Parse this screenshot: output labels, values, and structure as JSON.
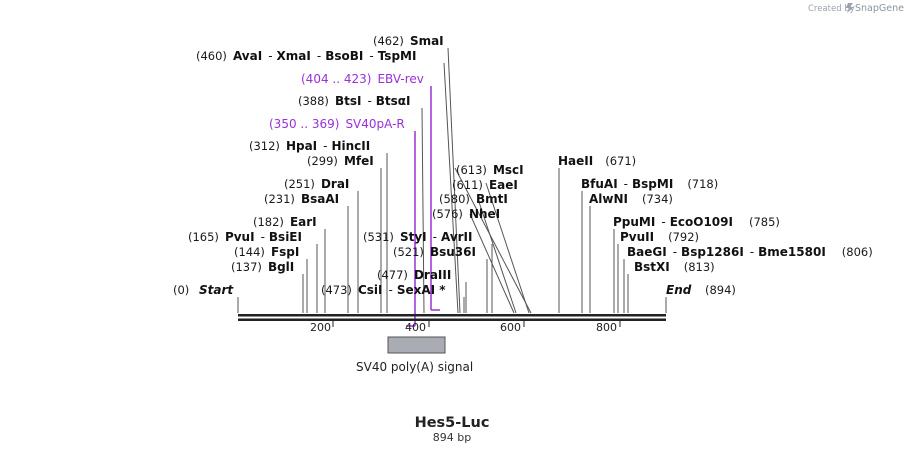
{
  "header": {
    "credit_text": "Created by",
    "brand_name": "SnapGene"
  },
  "map": {
    "title": "Hes5-Luc",
    "length_label": "894 bp",
    "total_bp": 894,
    "start_label": "Start",
    "start_pos": "(0)",
    "end_label": "End",
    "end_pos": "(894)",
    "ticks": [
      "200",
      "400",
      "600",
      "800"
    ]
  },
  "enzyme_rows": [
    {
      "left_pos": "(462)",
      "names": [
        "SmaI"
      ],
      "sites": [
        462
      ]
    },
    {
      "left_pos": "(460)",
      "names": [
        "AvaI",
        "XmaI",
        "BsoBI",
        "TspMI"
      ],
      "sites": [
        460
      ]
    },
    {
      "left_pos": "(388)",
      "names": [
        "BtsI",
        "BtsαI"
      ],
      "sites": [
        388
      ]
    },
    {
      "left_pos": "(312)",
      "names": [
        "HpaI",
        "HincII"
      ],
      "sites": [
        312
      ]
    },
    {
      "left_pos": "(299)",
      "names": [
        "MfeI"
      ],
      "sites": [
        299
      ]
    },
    {
      "left_pos": "(251)",
      "names": [
        "DraI"
      ],
      "sites": [
        251
      ]
    },
    {
      "left_pos": "(231)",
      "names": [
        "BsaAI"
      ],
      "sites": [
        231
      ]
    },
    {
      "left_pos": "(182)",
      "names": [
        "EarI"
      ],
      "sites": [
        182
      ]
    },
    {
      "left_pos": "(165)",
      "names": [
        "PvuI",
        "BsiEI"
      ],
      "sites": [
        165
      ]
    },
    {
      "left_pos": "(144)",
      "names": [
        "FspI"
      ],
      "sites": [
        144
      ]
    },
    {
      "left_pos": "(137)",
      "names": [
        "BglI"
      ],
      "sites": [
        137
      ]
    },
    {
      "left_pos": "(531)",
      "names": [
        "StyI",
        "AvrII"
      ],
      "sites": [
        531
      ]
    },
    {
      "left_pos": "(521)",
      "names": [
        "Bsu36I"
      ],
      "sites": [
        521
      ]
    },
    {
      "left_pos": "(477)",
      "names": [
        "DraIII"
      ],
      "sites": [
        477
      ]
    },
    {
      "left_pos": "(473)",
      "names": [
        "CsiI",
        "SexAI *"
      ],
      "sites": [
        473
      ]
    },
    {
      "left_pos": "(613)",
      "names": [
        "MscI"
      ],
      "sites": [
        613
      ]
    },
    {
      "left_pos": "(611)",
      "names": [
        "EaeI"
      ],
      "sites": [
        611
      ]
    },
    {
      "left_pos": "(580)",
      "names": [
        "BmtI"
      ],
      "sites": [
        580
      ]
    },
    {
      "left_pos": "(576)",
      "names": [
        "NheI"
      ],
      "sites": [
        576
      ]
    }
  ],
  "right_enzymes": [
    {
      "names": [
        "HaeII"
      ],
      "right_pos": "(671)",
      "sites": [
        671
      ]
    },
    {
      "names": [
        "BfuAI",
        "BspMI"
      ],
      "right_pos": "(718)",
      "sites": [
        718
      ]
    },
    {
      "names": [
        "AlwNI"
      ],
      "right_pos": "(734)",
      "sites": [
        734
      ]
    },
    {
      "names": [
        "PpuMI",
        "EcoO109I"
      ],
      "right_pos": "(785)",
      "sites": [
        785
      ]
    },
    {
      "names": [
        "PvuII"
      ],
      "right_pos": "(792)",
      "sites": [
        792
      ]
    },
    {
      "names": [
        "BaeGI",
        "Bsp1286I",
        "Bme1580I"
      ],
      "right_pos": "(806)",
      "sites": [
        806
      ]
    },
    {
      "names": [
        "BstXI"
      ],
      "right_pos": "(813)",
      "sites": [
        813
      ]
    }
  ],
  "primers": [
    {
      "range": "(404 .. 423)",
      "name": "EBV-rev",
      "start": 404,
      "end": 423,
      "direction": "reverse"
    },
    {
      "range": "(350 .. 369)",
      "name": "SV40pA-R",
      "start": 350,
      "end": 369,
      "direction": "reverse"
    }
  ],
  "features": [
    {
      "name": "SV40 poly(A) signal",
      "start": 314,
      "end": 435,
      "color": "#a9adb3"
    }
  ],
  "colors": {
    "backbone": "#222222",
    "primer": "#9b30d9",
    "feature": "#a9adb3",
    "cutline": "#555555"
  }
}
